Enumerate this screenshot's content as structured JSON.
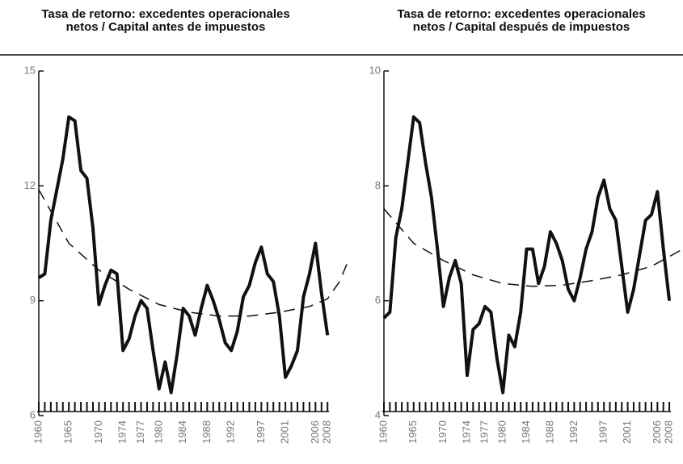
{
  "chart_data": [
    {
      "type": "line",
      "title": [
        "Tasa de retorno: excedentes operacionales",
        "netos / Capital antes de impuestos"
      ],
      "x": [
        1960,
        1961,
        1962,
        1963,
        1964,
        1965,
        1966,
        1967,
        1968,
        1969,
        1970,
        1971,
        1972,
        1973,
        1974,
        1975,
        1976,
        1977,
        1978,
        1979,
        1980,
        1981,
        1982,
        1983,
        1984,
        1985,
        1986,
        1987,
        1988,
        1989,
        1990,
        1991,
        1992,
        1993,
        1994,
        1995,
        1996,
        1997,
        1998,
        1999,
        2000,
        2001,
        2002,
        2003,
        2004,
        2005,
        2006,
        2007,
        2008
      ],
      "series": [
        {
          "color": "#111111",
          "values": [
            9.6,
            9.7,
            11.1,
            11.9,
            12.7,
            13.8,
            13.7,
            12.4,
            12.2,
            10.9,
            8.9,
            9.4,
            9.8,
            9.7,
            7.7,
            8.0,
            8.6,
            9.0,
            8.8,
            7.7,
            6.7,
            7.4,
            6.6,
            7.6,
            8.8,
            8.6,
            8.1,
            8.8,
            9.4,
            9.0,
            8.5,
            7.9,
            7.7,
            8.2,
            9.1,
            9.4,
            10.0,
            10.4,
            9.7,
            9.5,
            8.6,
            7.0,
            7.3,
            7.7,
            9.1,
            9.7,
            10.5,
            9.2,
            8.1
          ]
        },
        {
          "color": "#111111",
          "dashed": true,
          "x": [
            1960,
            1965,
            1970,
            1975,
            1980,
            1985,
            1990,
            1995,
            2000,
            2005,
            2008,
            2010,
            2011.6
          ],
          "values": [
            11.9,
            10.5,
            9.8,
            9.3,
            8.9,
            8.7,
            8.6,
            8.6,
            8.7,
            8.85,
            9.05,
            9.5,
            10.1
          ]
        }
      ],
      "xlim": [
        1960,
        2011.6
      ],
      "xticks": [
        1960,
        1965,
        1970,
        1974,
        1977,
        1980,
        1984,
        1988,
        1992,
        1997,
        2001,
        2006,
        2008
      ],
      "ylim": [
        6,
        15
      ],
      "yticks": [
        6,
        9,
        12,
        15
      ]
    },
    {
      "type": "line",
      "title": [
        "Tasa de retorno: excedentes operacionales",
        "netos / Capital después de impuestos"
      ],
      "x": [
        1960,
        1961,
        1962,
        1963,
        1964,
        1965,
        1966,
        1967,
        1968,
        1969,
        1970,
        1971,
        1972,
        1973,
        1974,
        1975,
        1976,
        1977,
        1978,
        1979,
        1980,
        1981,
        1982,
        1983,
        1984,
        1985,
        1986,
        1987,
        1988,
        1989,
        1990,
        1991,
        1992,
        1993,
        1994,
        1995,
        1996,
        1997,
        1998,
        1999,
        2000,
        2001,
        2002,
        2003,
        2004,
        2005,
        2006,
        2007,
        2008
      ],
      "series": [
        {
          "color": "#111111",
          "values": [
            5.7,
            5.8,
            7.1,
            7.6,
            8.4,
            9.2,
            9.1,
            8.4,
            7.8,
            6.9,
            5.9,
            6.4,
            6.7,
            6.3,
            4.7,
            5.5,
            5.6,
            5.9,
            5.8,
            5.0,
            4.4,
            5.4,
            5.2,
            5.8,
            6.9,
            6.9,
            6.3,
            6.6,
            7.2,
            7.0,
            6.7,
            6.2,
            6.0,
            6.4,
            6.9,
            7.2,
            7.8,
            8.1,
            7.6,
            7.4,
            6.6,
            5.8,
            6.2,
            6.8,
            7.4,
            7.5,
            7.9,
            6.9,
            6.0
          ]
        },
        {
          "color": "#111111",
          "dashed": true,
          "x": [
            1960,
            1965,
            1970,
            1975,
            1980,
            1985,
            1990,
            1995,
            2000,
            2005,
            2010.3
          ],
          "values": [
            7.6,
            7.0,
            6.7,
            6.45,
            6.3,
            6.25,
            6.27,
            6.35,
            6.45,
            6.6,
            6.9
          ]
        }
      ],
      "xlim": [
        1960,
        2010.3
      ],
      "xticks": [
        1960,
        1965,
        1970,
        1974,
        1977,
        1980,
        1984,
        1988,
        1992,
        1997,
        2001,
        2006,
        2008
      ],
      "ylim": [
        4,
        10
      ],
      "yticks": [
        4,
        6,
        8,
        10
      ]
    }
  ]
}
